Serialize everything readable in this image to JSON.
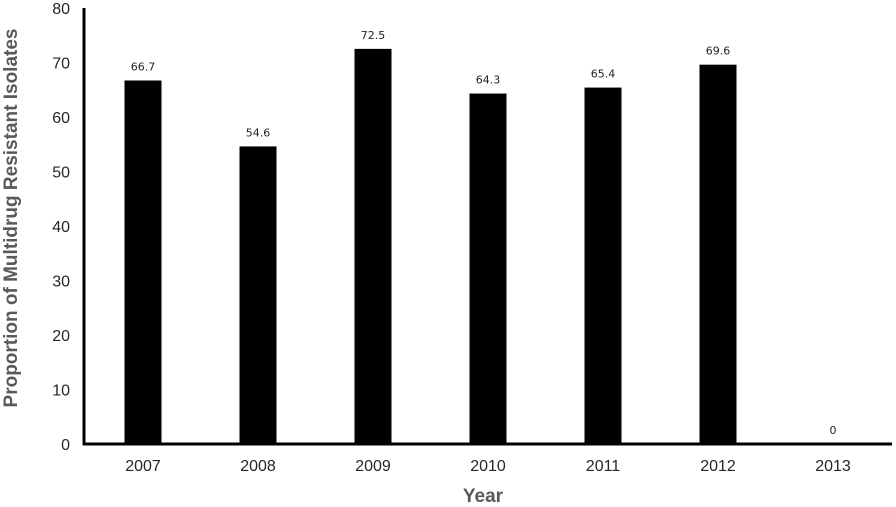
{
  "chart_data": {
    "type": "bar",
    "categories": [
      "2007",
      "2008",
      "2009",
      "2010",
      "2011",
      "2012",
      "2013"
    ],
    "values": [
      66.7,
      54.6,
      72.5,
      64.3,
      65.4,
      69.6,
      0
    ],
    "data_labels": [
      "66.7",
      "54.6",
      "72.5",
      "64.3",
      "65.4",
      "69.6",
      "0"
    ],
    "xlabel": "Year",
    "ylabel": "Proportion of Multidrug Resistant Isolates",
    "ylim": [
      0,
      80
    ],
    "yticks": [
      "0",
      "10",
      "20",
      "30",
      "40",
      "50",
      "60",
      "70",
      "80"
    ],
    "grid": false,
    "legend": "none",
    "bar_color": "#000000"
  }
}
